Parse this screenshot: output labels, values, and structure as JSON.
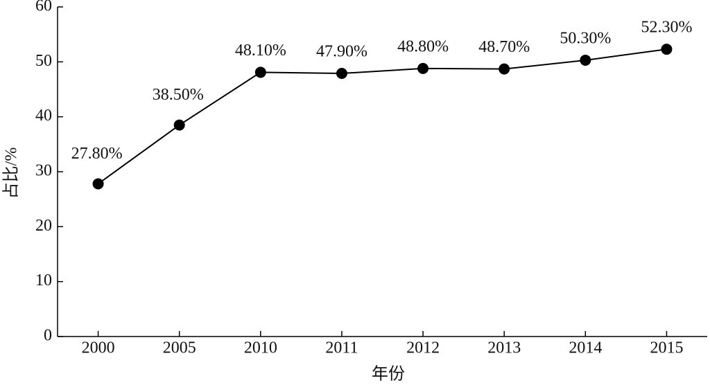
{
  "chart_data": {
    "type": "line",
    "x_label": "年份",
    "y_label": "占比/%",
    "categories": [
      "2000",
      "2005",
      "2010",
      "2011",
      "2012",
      "2013",
      "2014",
      "2015"
    ],
    "series": [
      {
        "name": "占比",
        "color": "#000000",
        "values": [
          27.8,
          38.5,
          48.1,
          47.9,
          48.8,
          48.7,
          50.3,
          52.3
        ],
        "value_labels": [
          "27.80%",
          "38.50%",
          "48.10%",
          "47.90%",
          "48.80%",
          "48.70%",
          "50.30%",
          "52.30%"
        ]
      }
    ],
    "ylim": [
      0,
      60
    ],
    "yticks": [
      0,
      10,
      20,
      30,
      40,
      50,
      60
    ]
  }
}
